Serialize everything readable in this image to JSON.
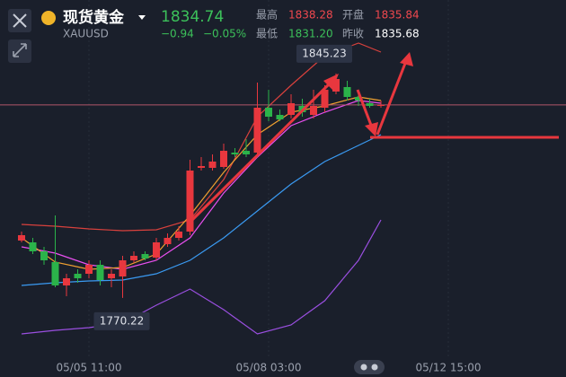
{
  "header": {
    "title": "现货黄金",
    "symbol": "XAUUSD",
    "price": "1834.74",
    "change": "−0.94",
    "change_pct": "−0.05%",
    "stats": [
      {
        "label": "最高",
        "value": "1838.28",
        "color": "#f0484e"
      },
      {
        "label": "开盘",
        "value": "1835.84",
        "color": "#f0484e"
      },
      {
        "label": "最低",
        "value": "1831.20",
        "color": "#3cc05a"
      },
      {
        "label": "昨收",
        "value": "1835.68",
        "color": "#ffffff"
      }
    ]
  },
  "chart_data": {
    "type": "candlestick",
    "categories": [
      null,
      null,
      null,
      null,
      null,
      null,
      "05/05 11:00",
      null,
      null,
      null,
      null,
      null,
      null,
      null,
      null,
      null,
      null,
      null,
      null,
      null,
      null,
      null,
      "05/08 03:00",
      null,
      null,
      null,
      null,
      null,
      null,
      null,
      null,
      null,
      null,
      null,
      null,
      null,
      null,
      null,
      "05/12 15:00",
      null,
      null,
      null,
      null,
      null,
      null,
      null,
      null,
      null,
      null
    ],
    "open": [
      1789.4,
      1788.8,
      1785.8,
      1782.2,
      1774.4,
      1778.3,
      1778.3,
      1781.3,
      1776.8,
      1777.4,
      1782.8,
      1784.9,
      1783.7,
      1788.2,
      1790.3,
      1792.4,
      1813.7,
      1813.7,
      1814.0,
      1818.8,
      1819.4,
      1818.8,
      1833.8,
      1831.4,
      1831.4,
      1834.4,
      1831.4,
      1833.8,
      1839.2,
      1840.7,
      1837.4,
      1835.3,
      1834.4,
      null,
      null,
      null,
      null,
      null,
      null,
      null,
      null,
      null,
      null,
      null,
      null,
      null,
      null,
      null,
      null
    ],
    "high": [
      1792.4,
      1790.3,
      1787.3,
      1797.8,
      1778.3,
      1779.8,
      1782.8,
      1782.8,
      1779.8,
      1784.3,
      1785.8,
      1785.8,
      1790.3,
      1791.8,
      1794.2,
      1816.4,
      1817.3,
      1818.2,
      1821.8,
      1820.3,
      1823.3,
      1842.2,
      1839.8,
      1833.2,
      1838.3,
      1836.8,
      1839.8,
      1841.3,
      1845.23,
      1842.8,
      1839.8,
      1836.8,
      1836.2,
      null,
      null,
      null,
      null,
      null,
      null,
      null,
      null,
      null,
      null,
      null,
      null,
      null,
      null,
      null,
      null
    ],
    "low": [
      1788.8,
      1784.9,
      1781.3,
      1773.8,
      1770.8,
      1775.3,
      1776.8,
      1774.4,
      1773.8,
      1770.22,
      1781.9,
      1782.8,
      1782.8,
      1787.3,
      1789.4,
      1791.2,
      1812.8,
      1812.8,
      1813.4,
      1817.3,
      1817.3,
      1817.3,
      1829.3,
      1829.3,
      1830.2,
      1830.8,
      1830.2,
      1832.3,
      1838.3,
      1836.2,
      1834.4,
      1833.8,
      1833.8,
      null,
      null,
      null,
      null,
      null,
      null,
      null,
      null,
      null,
      null,
      null,
      null,
      null,
      null,
      null,
      null
    ],
    "close": [
      1791.2,
      1785.8,
      1782.8,
      1774.4,
      1776.8,
      1776.8,
      1781.3,
      1776.2,
      1778.3,
      1782.8,
      1784.3,
      1783.4,
      1788.8,
      1790.3,
      1792.4,
      1812.8,
      1814.3,
      1815.8,
      1819.4,
      1818.2,
      1818.2,
      1833.8,
      1830.8,
      1829.9,
      1835.3,
      1832.3,
      1834.4,
      1839.8,
      1843.4,
      1837.4,
      1836.2,
      1834.4,
      1834.74,
      null,
      null,
      null,
      null,
      null,
      null,
      null,
      null,
      null,
      null,
      null,
      null,
      null,
      null,
      null,
      null
    ],
    "up_color": "#e8373e",
    "down_color": "#2bb34a",
    "ylim": [
      1749.8,
      1869.8
    ],
    "indicators": [
      {
        "color": "#d9413d",
        "x": [
          0,
          3,
          6,
          9,
          12,
          15,
          18,
          21,
          24,
          27,
          30,
          32
        ],
        "values": [
          1794.8,
          1794.2,
          1793.3,
          1792.7,
          1793.0,
          1796.3,
          1809.8,
          1830.8,
          1841.3,
          1851.2,
          1855.4,
          1852.4
        ]
      },
      {
        "color": "#e94ff0",
        "x": [
          0,
          3,
          6,
          9,
          12,
          15,
          18,
          21,
          24,
          27,
          30,
          32
        ],
        "values": [
          1787.3,
          1785.2,
          1781.3,
          1779.8,
          1782.8,
          1790.3,
          1805.3,
          1817.3,
          1827.8,
          1832.3,
          1836.2,
          1835.3
        ]
      },
      {
        "color": "#3a9af2",
        "x": [
          0,
          3,
          6,
          9,
          12,
          15,
          18,
          21,
          24,
          27,
          30,
          32
        ],
        "values": [
          1774.4,
          1775.3,
          1775.9,
          1776.2,
          1778.3,
          1782.8,
          1790.3,
          1799.3,
          1808.3,
          1815.8,
          1821.2,
          1824.8
        ]
      },
      {
        "color": "#9a4fe0",
        "x": [
          0,
          3,
          6,
          9,
          12,
          15,
          18,
          21,
          24,
          27,
          30,
          32
        ],
        "values": [
          1758.2,
          1759.4,
          1760.3,
          1761.8,
          1767.8,
          1773.2,
          1766.3,
          1758.2,
          1761.2,
          1769.3,
          1782.8,
          1796.3
        ]
      },
      {
        "color": "#f0a030",
        "x": [
          0,
          3,
          6,
          9,
          12,
          15,
          18,
          21,
          24,
          27,
          30,
          32
        ],
        "values": [
          1790.3,
          1782.2,
          1779.8,
          1780.4,
          1784.9,
          1797.8,
          1812.2,
          1824.8,
          1832.3,
          1834.4,
          1837.4,
          1836.2
        ]
      }
    ],
    "annotations": [
      {
        "label": "1845.23",
        "value": 1845.23,
        "at": 28
      },
      {
        "label": "1770.22",
        "value": 1770.22,
        "at": 9
      }
    ]
  }
}
